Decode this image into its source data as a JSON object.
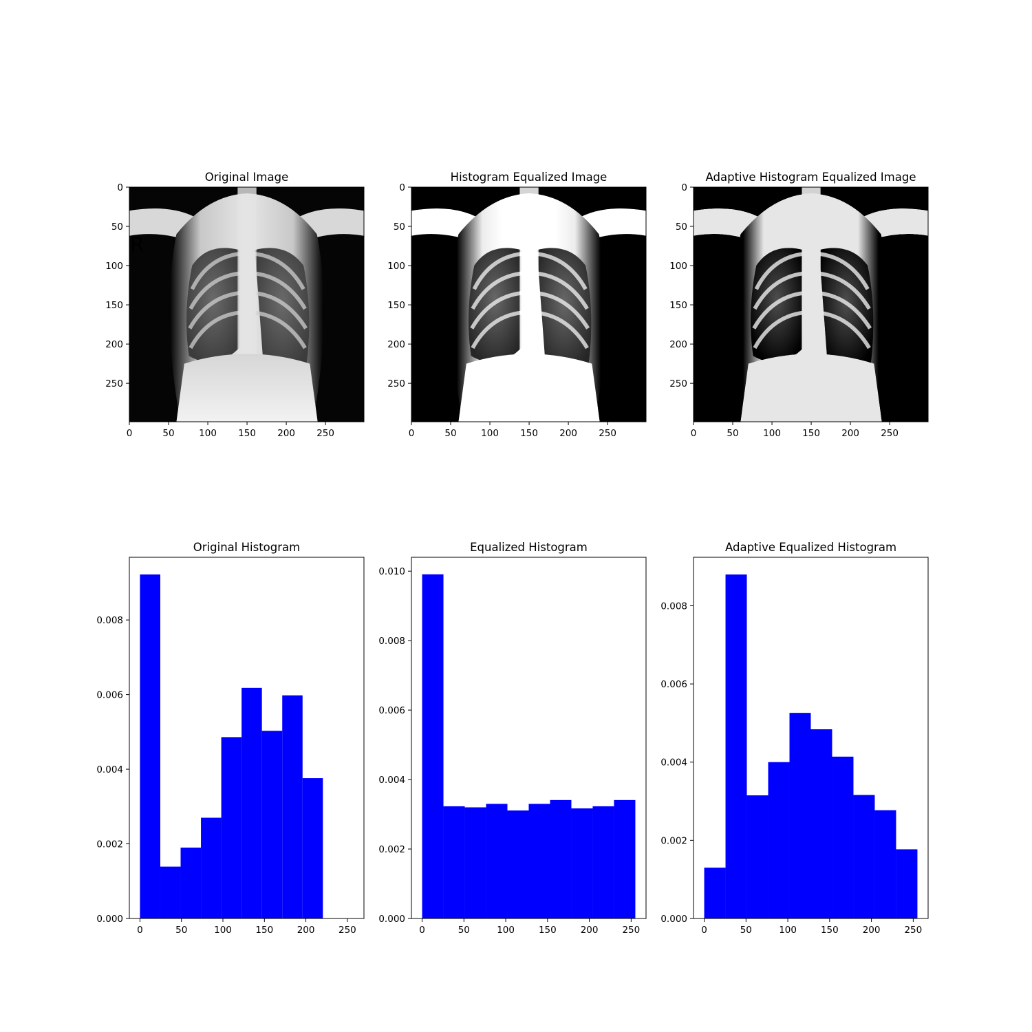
{
  "chart_data": [
    {
      "type": "image",
      "title": "Original Image",
      "image": "chest-xray-original",
      "xticks": [
        0,
        50,
        100,
        150,
        200,
        250
      ],
      "yticks": [
        0,
        50,
        100,
        150,
        200,
        250
      ],
      "xlim": [
        0,
        299
      ],
      "ylim": [
        299,
        0
      ]
    },
    {
      "type": "image",
      "title": "Histogram Equalized Image",
      "image": "chest-xray-equalized",
      "xticks": [
        0,
        50,
        100,
        150,
        200,
        250
      ],
      "yticks": [
        0,
        50,
        100,
        150,
        200,
        250
      ],
      "xlim": [
        0,
        299
      ],
      "ylim": [
        299,
        0
      ]
    },
    {
      "type": "image",
      "title": "Adaptive Histogram Equalized Image",
      "image": "chest-xray-adaptive-equalized",
      "xticks": [
        0,
        50,
        100,
        150,
        200,
        250
      ],
      "yticks": [
        0,
        50,
        100,
        150,
        200,
        250
      ],
      "xlim": [
        0,
        299
      ],
      "ylim": [
        299,
        0
      ]
    },
    {
      "type": "bar",
      "title": "Original Histogram",
      "bin_edges": [
        0,
        24.5,
        49,
        73.5,
        98,
        122.5,
        147,
        171.5,
        196,
        220.5
      ],
      "values": [
        0.00922,
        0.00139,
        0.0019,
        0.0027,
        0.00486,
        0.00618,
        0.00503,
        0.00598,
        0.00376
      ],
      "color": "#0000ff",
      "xlim": [
        -12.8,
        270
      ],
      "ylim": [
        0,
        0.00968
      ],
      "xticks": [
        0,
        50,
        100,
        150,
        200,
        250
      ],
      "yticks": [
        "0.000",
        "0.002",
        "0.004",
        "0.006",
        "0.008"
      ]
    },
    {
      "type": "bar",
      "title": "Equalized Histogram",
      "bin_edges": [
        0,
        25.5,
        51,
        76.5,
        102,
        127.5,
        153,
        178.5,
        204,
        229.5,
        255
      ],
      "values": [
        0.00991,
        0.00323,
        0.0032,
        0.0033,
        0.00311,
        0.0033,
        0.00341,
        0.00317,
        0.00323,
        0.00341
      ],
      "color": "#0000ff",
      "xlim": [
        -12.8,
        267.8
      ],
      "ylim": [
        0,
        0.0104
      ],
      "xticks": [
        0,
        50,
        100,
        150,
        200,
        250
      ],
      "yticks": [
        "0.000",
        "0.002",
        "0.004",
        "0.006",
        "0.008",
        "0.010"
      ]
    },
    {
      "type": "bar",
      "title": "Adaptive Equalized Histogram",
      "bin_edges": [
        0,
        25.5,
        51,
        76.5,
        102,
        127.5,
        153,
        178.5,
        204,
        229.5,
        255
      ],
      "values": [
        0.0013,
        0.0088,
        0.00315,
        0.004,
        0.00526,
        0.00484,
        0.00414,
        0.00316,
        0.00277,
        0.00177
      ],
      "color": "#0000ff",
      "xlim": [
        -12.8,
        267.8
      ],
      "ylim": [
        0,
        0.00924
      ],
      "xticks": [
        0,
        50,
        100,
        150,
        200,
        250
      ],
      "yticks": [
        "0.000",
        "0.002",
        "0.004",
        "0.006",
        "0.008"
      ]
    }
  ]
}
